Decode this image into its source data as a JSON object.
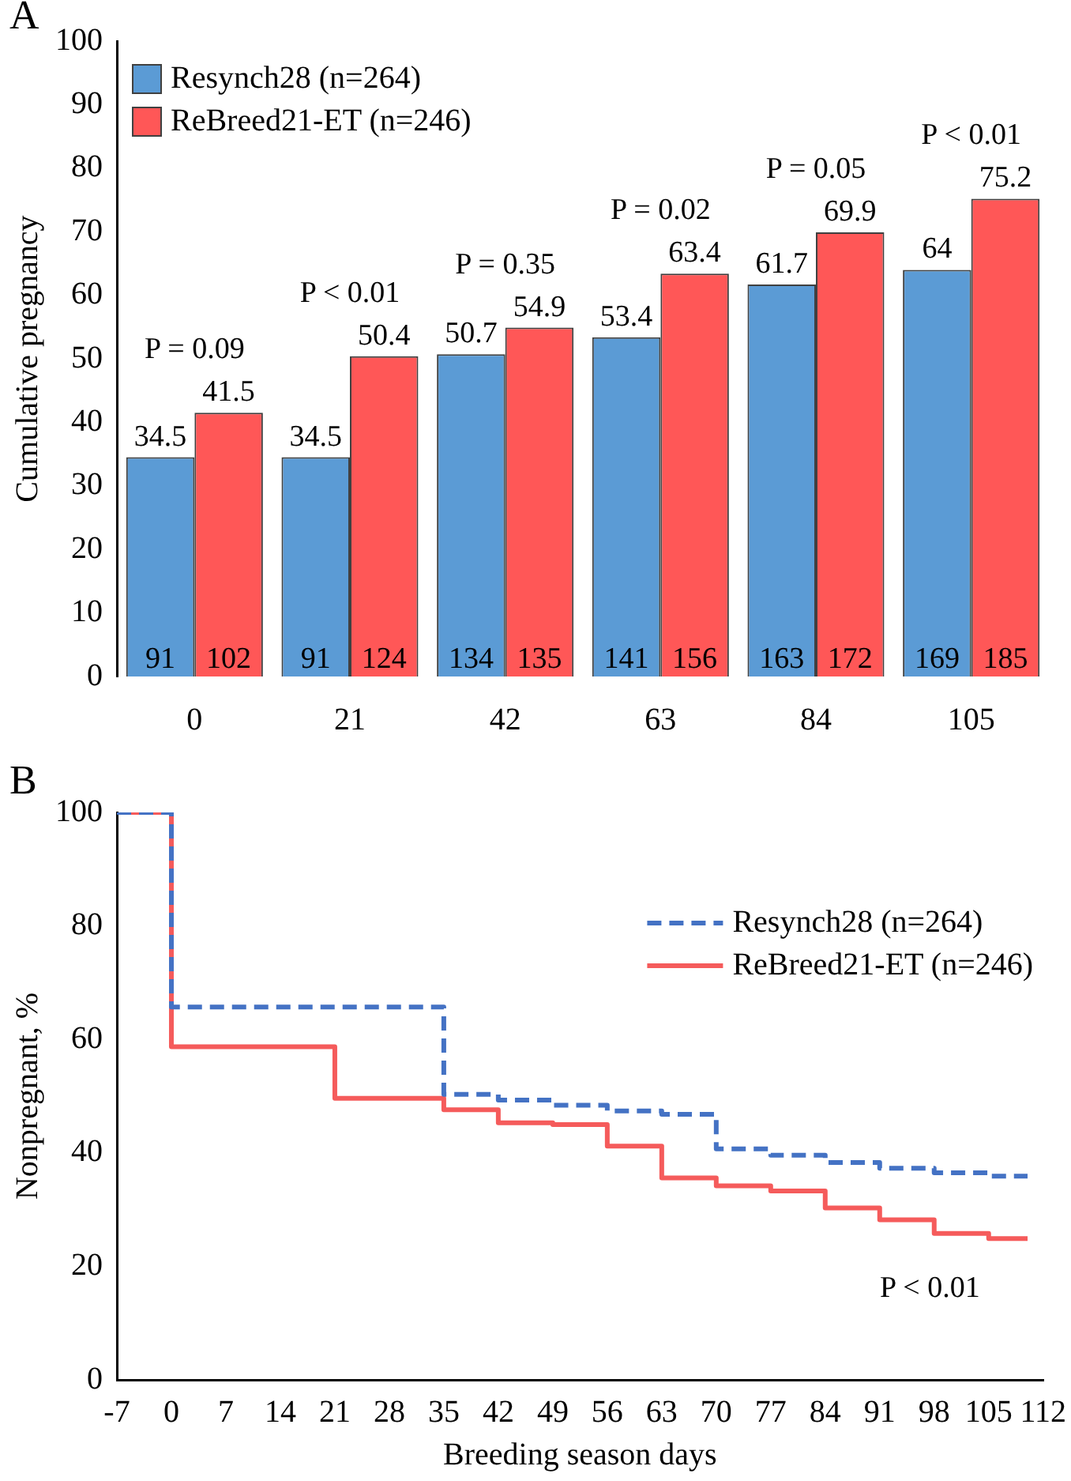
{
  "chart_data": [
    {
      "type": "bar",
      "title": "A",
      "ylabel": "Cumulative pregnancy",
      "categories": [
        "0",
        "21",
        "42",
        "63",
        "84",
        "105"
      ],
      "series": [
        {
          "name": "Resynch28 (n=264)",
          "color": "#5b9bd5",
          "values": [
            34.5,
            34.5,
            50.7,
            53.4,
            61.7,
            64
          ]
        },
        {
          "name": "ReBreed21-ET (n=246)",
          "color": "#ff5757",
          "values": [
            41.5,
            50.4,
            54.9,
            63.4,
            69.9,
            75.2
          ]
        }
      ],
      "ylim": [
        0,
        100
      ],
      "yticks": [
        0,
        10,
        20,
        30,
        40,
        50,
        60,
        70,
        80,
        90,
        100
      ],
      "grid": false,
      "legend": "top left",
      "data_labels": true,
      "annotations": [
        "P = 0.09",
        "P < 0.01",
        "P = 0.35",
        "P = 0.02",
        "P = 0.05",
        "P < 0.01",
        {
          "text": "91",
          "x": "0",
          "y": 0
        },
        {
          "text": "102",
          "x": "0",
          "y": 0
        },
        {
          "text": "91",
          "x": "21",
          "y": 0
        },
        {
          "text": "124",
          "x": "21",
          "y": 0
        },
        {
          "text": "134",
          "x": "42",
          "y": 0
        },
        {
          "text": "135",
          "x": "42",
          "y": 0
        },
        {
          "text": "141",
          "x": "63",
          "y": 0
        },
        {
          "text": "156",
          "x": "63",
          "y": 0
        },
        {
          "text": "163",
          "x": "84",
          "y": 0
        },
        {
          "text": "172",
          "x": "84",
          "y": 0
        },
        {
          "text": "169",
          "x": "105",
          "y": 0
        },
        {
          "text": "185",
          "x": "105",
          "y": 0
        }
      ]
    },
    {
      "type": "step",
      "title": "B",
      "xlabel": "Breeding season days",
      "ylabel": "Nonpregnant, %",
      "x": [
        -7,
        0,
        21,
        35,
        42,
        49,
        56,
        63,
        70,
        77,
        84,
        91,
        98,
        105,
        110
      ],
      "series": [
        {
          "name": "Resynch28 (n=264)",
          "color": "#4472c4",
          "line_style": "dashed",
          "values": [
            100,
            65.7,
            65.7,
            50.3,
            49.3,
            48.4,
            47.4,
            46.8,
            40.7,
            39.6,
            38.3,
            37.3,
            36.5,
            35.9,
            35.9
          ]
        },
        {
          "name": "ReBreed21-ET (n=246)",
          "color": "#f55b5b",
          "line_style": "solid",
          "values": [
            100,
            58.7,
            49.6,
            47.6,
            45.3,
            45,
            41.2,
            35.6,
            34.2,
            33.3,
            30.3,
            28.2,
            25.8,
            24.9,
            24.9
          ]
        }
      ],
      "xlim": [
        -7,
        112
      ],
      "xticks": [
        -7,
        0,
        7,
        14,
        21,
        28,
        35,
        42,
        49,
        56,
        63,
        70,
        77,
        84,
        91,
        98,
        105,
        112
      ],
      "ylim": [
        0,
        100
      ],
      "yticks": [
        0,
        20,
        40,
        60,
        80,
        100
      ],
      "grid": false,
      "legend": "top right",
      "marker": "none",
      "annotations": [
        "P < 0.01"
      ]
    }
  ]
}
